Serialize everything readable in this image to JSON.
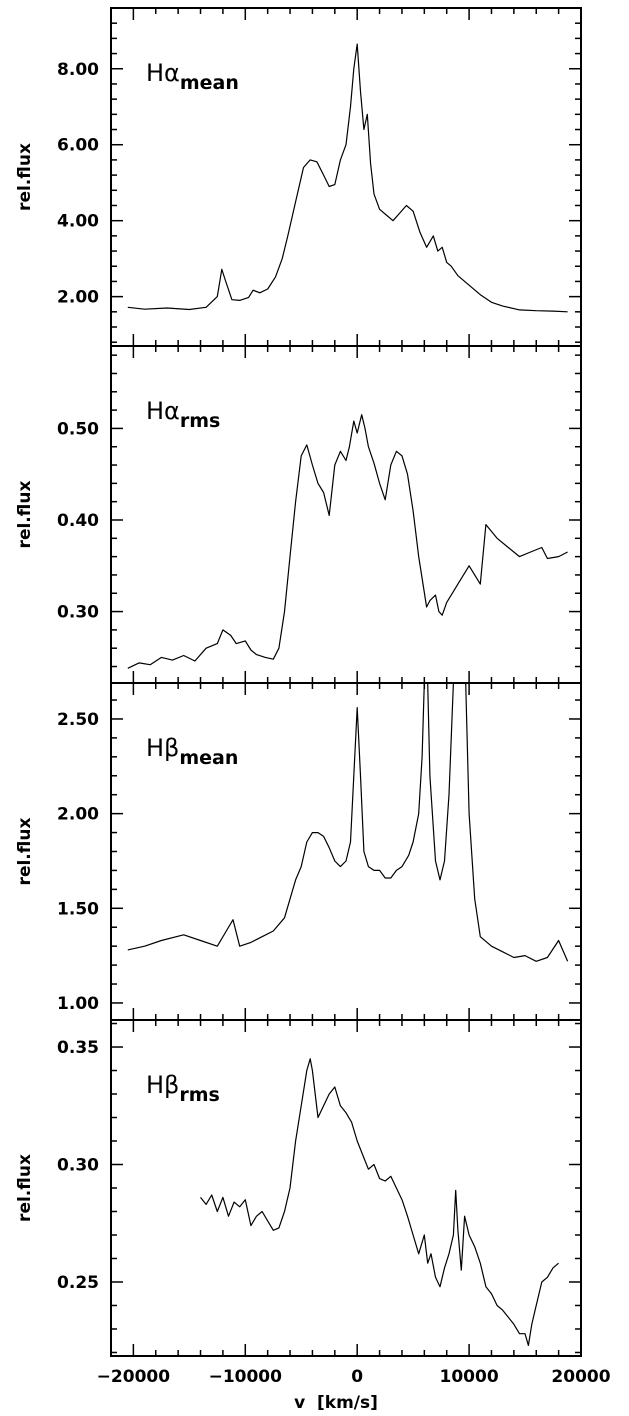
{
  "chart_data": {
    "type": "line",
    "xlabel": "v  [km/s]",
    "xlim": [
      -22000,
      20000
    ],
    "xticks": [
      -20000,
      -10000,
      0,
      10000,
      20000
    ],
    "xtick_labels": [
      "−20000",
      "−10000",
      "0",
      "10000",
      "20000"
    ],
    "panels": [
      {
        "title_main": "Hα",
        "title_sub": "mean",
        "ylabel": "rel.flux",
        "ylim": [
          0.7,
          9.6
        ],
        "yticks": [
          2,
          4,
          6,
          8
        ],
        "ytick_labels": [
          "2.00",
          "4.00",
          "6.00",
          "8.00"
        ],
        "x": [
          -20500,
          -19000,
          -17000,
          -15000,
          -13500,
          -12500,
          -12100,
          -11800,
          -11200,
          -10500,
          -9700,
          -9300,
          -8700,
          -8000,
          -7300,
          -6700,
          -6200,
          -5500,
          -4800,
          -4200,
          -3600,
          -3000,
          -2500,
          -2000,
          -1500,
          -1000,
          -600,
          -300,
          0,
          300,
          600,
          900,
          1200,
          1500,
          2000,
          2600,
          3200,
          3800,
          4400,
          5000,
          5600,
          6200,
          6800,
          7200,
          7600,
          8000,
          8400,
          9000,
          10000,
          11000,
          12000,
          13000,
          14500,
          16000,
          17500,
          18800
        ],
        "y": [
          1.72,
          1.67,
          1.7,
          1.66,
          1.72,
          2.0,
          2.72,
          2.45,
          1.92,
          1.9,
          1.98,
          2.17,
          2.1,
          2.2,
          2.52,
          3.0,
          3.6,
          4.5,
          5.4,
          5.6,
          5.55,
          5.2,
          4.9,
          4.95,
          5.6,
          6.0,
          7.0,
          8.0,
          8.65,
          7.4,
          6.4,
          6.8,
          5.5,
          4.7,
          4.3,
          4.15,
          4.0,
          4.2,
          4.4,
          4.25,
          3.7,
          3.3,
          3.6,
          3.2,
          3.3,
          2.9,
          2.8,
          2.55,
          2.3,
          2.05,
          1.85,
          1.75,
          1.65,
          1.63,
          1.62,
          1.6
        ]
      },
      {
        "title_main": "Hα",
        "title_sub": "rms",
        "ylabel": "rel.flux",
        "ylim": [
          0.222,
          0.59
        ],
        "yticks": [
          0.3,
          0.4,
          0.5
        ],
        "ytick_labels": [
          "0.30",
          "0.40",
          "0.50"
        ],
        "x": [
          -20500,
          -19500,
          -18500,
          -17500,
          -16500,
          -15500,
          -14500,
          -13500,
          -12500,
          -12000,
          -11300,
          -10800,
          -10000,
          -9500,
          -9000,
          -8200,
          -7500,
          -7000,
          -6500,
          -6000,
          -5500,
          -5000,
          -4500,
          -4000,
          -3500,
          -3000,
          -2500,
          -2000,
          -1500,
          -1000,
          -700,
          -300,
          0,
          400,
          700,
          1000,
          1500,
          2000,
          2500,
          3000,
          3500,
          4000,
          4500,
          5000,
          5500,
          6200,
          6500,
          7000,
          7300,
          7600,
          8000,
          8500,
          9000,
          9500,
          10000,
          10500,
          11000,
          11500,
          12500,
          13500,
          14500,
          15500,
          16500,
          17000,
          18000,
          18800
        ],
        "y": [
          0.238,
          0.244,
          0.242,
          0.25,
          0.247,
          0.252,
          0.246,
          0.26,
          0.265,
          0.28,
          0.274,
          0.265,
          0.268,
          0.258,
          0.253,
          0.25,
          0.248,
          0.26,
          0.3,
          0.36,
          0.42,
          0.47,
          0.482,
          0.46,
          0.44,
          0.43,
          0.405,
          0.46,
          0.475,
          0.465,
          0.48,
          0.508,
          0.495,
          0.515,
          0.5,
          0.48,
          0.462,
          0.44,
          0.422,
          0.46,
          0.475,
          0.47,
          0.45,
          0.41,
          0.36,
          0.305,
          0.312,
          0.318,
          0.3,
          0.296,
          0.31,
          0.32,
          0.33,
          0.34,
          0.35,
          0.34,
          0.33,
          0.395,
          0.38,
          0.37,
          0.36,
          0.365,
          0.37,
          0.358,
          0.36,
          0.365
        ]
      },
      {
        "title_main": "Hβ",
        "title_sub": "mean",
        "ylabel": "rel.flux",
        "ylim": [
          0.91,
          2.69
        ],
        "yticks": [
          1.0,
          1.5,
          2.0,
          2.5
        ],
        "ytick_labels": [
          "1.00",
          "1.50",
          "2.00",
          "2.50"
        ],
        "x": [
          -20500,
          -19000,
          -17500,
          -15500,
          -14000,
          -12500,
          -11700,
          -11100,
          -10500,
          -9500,
          -8500,
          -7500,
          -6500,
          -5500,
          -5000,
          -4500,
          -4000,
          -3500,
          -3000,
          -2500,
          -2000,
          -1500,
          -1000,
          -600,
          -300,
          0,
          300,
          600,
          1000,
          1500,
          2000,
          2500,
          3000,
          3500,
          4000,
          4600,
          5000,
          5500,
          5800,
          6000,
          6150,
          6300,
          6500,
          7000,
          7400,
          7800,
          8200,
          8600,
          9000,
          9300,
          9500,
          9700,
          10000,
          10500,
          11000,
          12000,
          13000,
          14000,
          15000,
          16000,
          17000,
          18000,
          18800
        ],
        "y": [
          1.28,
          1.3,
          1.33,
          1.36,
          1.33,
          1.3,
          1.38,
          1.44,
          1.3,
          1.32,
          1.35,
          1.38,
          1.45,
          1.65,
          1.72,
          1.85,
          1.9,
          1.9,
          1.88,
          1.82,
          1.75,
          1.72,
          1.75,
          1.85,
          2.2,
          2.56,
          2.2,
          1.8,
          1.72,
          1.7,
          1.7,
          1.66,
          1.66,
          1.7,
          1.72,
          1.78,
          1.85,
          2.0,
          2.3,
          2.69,
          2.69,
          2.69,
          2.2,
          1.75,
          1.65,
          1.75,
          2.1,
          2.69,
          2.69,
          2.69,
          2.69,
          2.69,
          2.0,
          1.55,
          1.35,
          1.3,
          1.27,
          1.24,
          1.25,
          1.22,
          1.24,
          1.33,
          1.22
        ]
      },
      {
        "title_main": "Hβ",
        "title_sub": "rms",
        "ylabel": "rel.flux",
        "ylim": [
          0.2185,
          0.3615
        ],
        "yticks": [
          0.25,
          0.3,
          0.35
        ],
        "ytick_labels": [
          "0.25",
          "0.30",
          "0.35"
        ],
        "x": [
          -14000,
          -13500,
          -13000,
          -12500,
          -12000,
          -11500,
          -11000,
          -10500,
          -10000,
          -9500,
          -9000,
          -8500,
          -8000,
          -7500,
          -7000,
          -6500,
          -6000,
          -5500,
          -5000,
          -4500,
          -4200,
          -4000,
          -3500,
          -3000,
          -2500,
          -2000,
          -1500,
          -1000,
          -500,
          0,
          500,
          1000,
          1500,
          2000,
          2500,
          3000,
          3500,
          4000,
          4500,
          5000,
          5500,
          6000,
          6300,
          6600,
          7000,
          7400,
          7800,
          8200,
          8600,
          8800,
          9000,
          9300,
          9600,
          10000,
          10500,
          11000,
          11500,
          12000,
          12500,
          13000,
          13500,
          14000,
          14500,
          15000,
          15300,
          15600,
          16000,
          16500,
          17000,
          17500,
          18000
        ],
        "y": [
          0.286,
          0.283,
          0.287,
          0.28,
          0.286,
          0.278,
          0.284,
          0.282,
          0.285,
          0.274,
          0.278,
          0.28,
          0.276,
          0.272,
          0.273,
          0.28,
          0.29,
          0.31,
          0.325,
          0.34,
          0.345,
          0.34,
          0.32,
          0.325,
          0.33,
          0.333,
          0.325,
          0.322,
          0.318,
          0.31,
          0.304,
          0.298,
          0.3,
          0.294,
          0.293,
          0.295,
          0.29,
          0.285,
          0.278,
          0.27,
          0.262,
          0.27,
          0.258,
          0.262,
          0.252,
          0.248,
          0.256,
          0.262,
          0.27,
          0.289,
          0.272,
          0.255,
          0.278,
          0.27,
          0.265,
          0.258,
          0.248,
          0.245,
          0.24,
          0.238,
          0.235,
          0.232,
          0.228,
          0.228,
          0.223,
          0.232,
          0.24,
          0.25,
          0.252,
          0.256,
          0.258
        ]
      }
    ]
  }
}
